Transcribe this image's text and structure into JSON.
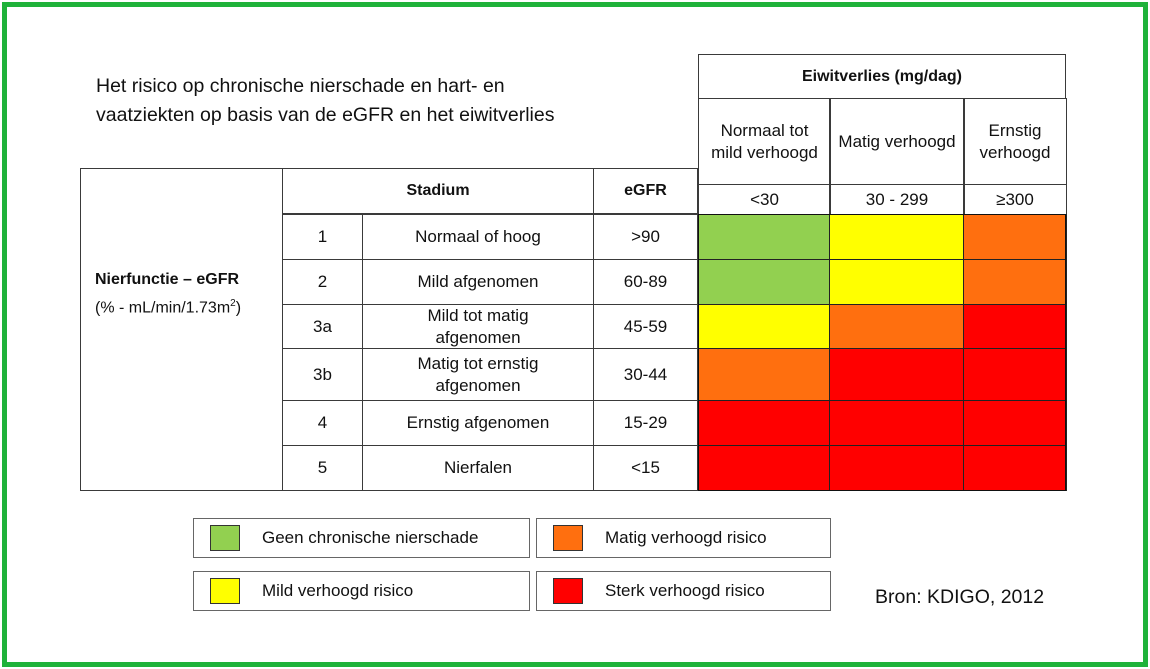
{
  "title": {
    "line1": "Het risico op chronische nierschade en hart- en",
    "line2": "vaatziekten op basis van de eGFR en het eiwitverlies"
  },
  "nierfunctie": {
    "label": "Nierfunctie – eGFR",
    "unit_prefix": "(% - mL/min/1.73m",
    "unit_sup": "2",
    "unit_suffix": ")"
  },
  "headers": {
    "stadium": "Stadium",
    "egfr": "eGFR",
    "eiwitverlies": "Eiwitverlies (mg/dag)"
  },
  "colors": {
    "green": "#92d050",
    "yellow": "#ffff00",
    "orange": "#ff6f0f",
    "red": "#ff0000"
  },
  "chart_data": {
    "type": "heatmap",
    "title": "Het risico op chronische nierschade en hart- en vaatziekten op basis van de eGFR en het eiwitverlies",
    "columns": [
      {
        "label": "Normaal tot mild verhoogd",
        "range": "<30"
      },
      {
        "label": "Matig verhoogd",
        "range": "30 - 299"
      },
      {
        "label": "Ernstig verhoogd",
        "range": "≥300"
      }
    ],
    "rows": [
      {
        "stage": "1",
        "description": "Normaal of hoog",
        "egfr": ">90",
        "levels": [
          "green",
          "yellow",
          "orange"
        ]
      },
      {
        "stage": "2",
        "description": "Mild afgenomen",
        "egfr": "60-89",
        "levels": [
          "green",
          "yellow",
          "orange"
        ]
      },
      {
        "stage": "3a",
        "description": "Mild tot matig afgenomen",
        "egfr": "45-59",
        "levels": [
          "yellow",
          "orange",
          "red"
        ]
      },
      {
        "stage": "3b",
        "description": "Matig tot ernstig afgenomen",
        "egfr": "30-44",
        "levels": [
          "orange",
          "red",
          "red"
        ]
      },
      {
        "stage": "4",
        "description": "Ernstig afgenomen",
        "egfr": "15-29",
        "levels": [
          "red",
          "red",
          "red"
        ]
      },
      {
        "stage": "5",
        "description": "Nierfalen",
        "egfr": "<15",
        "levels": [
          "red",
          "red",
          "red"
        ]
      }
    ],
    "legend": [
      {
        "color": "green",
        "label": "Geen chronische nierschade"
      },
      {
        "color": "orange",
        "label": "Matig verhoogd risico"
      },
      {
        "color": "yellow",
        "label": "Mild verhoogd risico"
      },
      {
        "color": "red",
        "label": "Sterk verhoogd risico"
      }
    ]
  },
  "source": "Bron: KDIGO, 2012"
}
